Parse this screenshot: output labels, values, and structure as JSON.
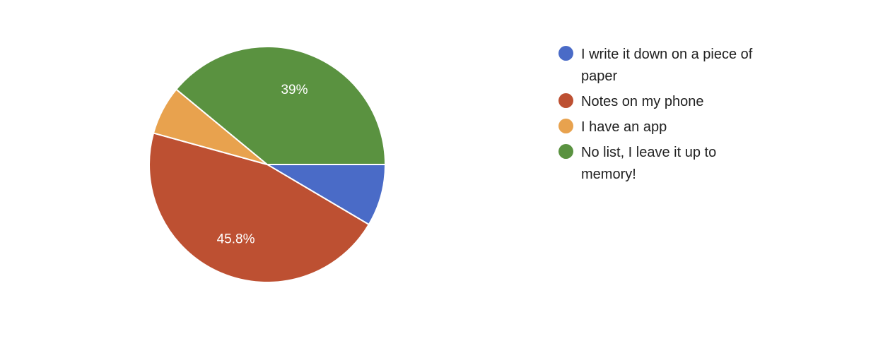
{
  "chart_data": {
    "type": "pie",
    "title": "",
    "slices": [
      {
        "label": "I write it down on a piece of paper",
        "value": 8.5,
        "color": "#4a6bc7"
      },
      {
        "label": "Notes on my phone",
        "value": 45.8,
        "color": "#bd5032",
        "label_text": "45.8%"
      },
      {
        "label": "I have an app",
        "value": 6.7,
        "color": "#e8a24e"
      },
      {
        "label": "No list, I leave it up to memory!",
        "value": 39.0,
        "color": "#5a9240",
        "label_text": "39%"
      }
    ],
    "legend_position": "right"
  }
}
